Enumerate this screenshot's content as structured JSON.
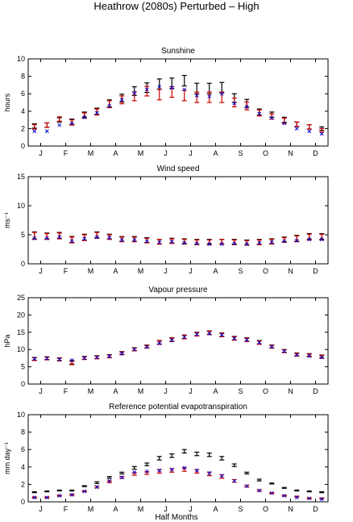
{
  "figure": {
    "title": "Heathrow (2080s) Perturbed – High",
    "xlabel": "Half Months",
    "month_labels": [
      "J",
      "F",
      "M",
      "A",
      "M",
      "J",
      "J",
      "A",
      "S",
      "O",
      "N",
      "D"
    ]
  },
  "chart_data": [
    {
      "type": "scatter",
      "title": "Sunshine",
      "ylabel": "hours",
      "ylim": [
        0,
        10
      ],
      "yticks": [
        0,
        2,
        4,
        6,
        8,
        10
      ],
      "x": [
        1,
        2,
        3,
        4,
        5,
        6,
        7,
        8,
        9,
        10,
        11,
        12,
        13,
        14,
        15,
        16,
        17,
        18,
        19,
        20,
        21,
        22,
        23,
        24
      ],
      "series": [
        {
          "color": "#000000",
          "marker": "errorbar",
          "values": [
            2.3,
            2.4,
            3.0,
            2.8,
            3.6,
            4.0,
            4.9,
            5.5,
            6.3,
            6.7,
            7.1,
            7.2,
            7.5,
            6.6,
            6.6,
            6.7,
            5.5,
            4.9,
            3.9,
            3.6,
            3.0,
            2.5,
            2.2,
            2.0
          ],
          "err": [
            0.25,
            0.25,
            0.25,
            0.3,
            0.3,
            0.35,
            0.4,
            0.45,
            0.5,
            0.55,
            0.6,
            0.6,
            0.6,
            0.6,
            0.6,
            0.6,
            0.5,
            0.45,
            0.35,
            0.3,
            0.3,
            0.25,
            0.25,
            0.2
          ]
        },
        {
          "color": "#cc0000",
          "marker": "errorbar",
          "values": [
            2.2,
            2.4,
            3.1,
            2.7,
            3.5,
            3.9,
            4.8,
            5.3,
            5.7,
            6.3,
            5.9,
            6.2,
            5.8,
            5.6,
            5.6,
            5.6,
            5.0,
            4.6,
            3.8,
            3.4,
            2.9,
            2.5,
            2.2,
            1.8
          ],
          "err": [
            0.25,
            0.25,
            0.25,
            0.3,
            0.3,
            0.35,
            0.4,
            0.45,
            0.5,
            0.55,
            0.6,
            0.6,
            0.6,
            0.6,
            0.6,
            0.6,
            0.5,
            0.45,
            0.35,
            0.3,
            0.3,
            0.25,
            0.25,
            0.2
          ]
        },
        {
          "color": "#0000cc",
          "marker": "x",
          "values": [
            1.7,
            1.7,
            2.4,
            2.6,
            3.3,
            3.8,
            4.6,
            5.3,
            6.1,
            6.5,
            6.8,
            6.7,
            6.5,
            5.8,
            5.7,
            6.0,
            4.9,
            4.5,
            3.7,
            3.2,
            2.6,
            2.0,
            1.7,
            1.4
          ]
        }
      ]
    },
    {
      "type": "scatter",
      "title": "Wind speed",
      "ylabel": "ms⁻¹",
      "ylim": [
        0,
        15
      ],
      "yticks": [
        0,
        5,
        10,
        15
      ],
      "x": [
        1,
        2,
        3,
        4,
        5,
        6,
        7,
        8,
        9,
        10,
        11,
        12,
        13,
        14,
        15,
        16,
        17,
        18,
        19,
        20,
        21,
        22,
        23,
        24
      ],
      "series": [
        {
          "color": "#000000",
          "marker": "errorbar",
          "values": [
            4.9,
            4.8,
            4.9,
            4.2,
            4.6,
            5.0,
            4.7,
            4.3,
            4.3,
            4.1,
            3.8,
            4.0,
            3.9,
            3.8,
            3.8,
            3.8,
            3.8,
            3.7,
            3.8,
            3.9,
            4.2,
            4.4,
            4.7,
            4.7
          ],
          "err": [
            0.6,
            0.5,
            0.5,
            0.5,
            0.5,
            0.5,
            0.4,
            0.4,
            0.4,
            0.4,
            0.4,
            0.4,
            0.4,
            0.4,
            0.4,
            0.4,
            0.4,
            0.4,
            0.4,
            0.4,
            0.4,
            0.5,
            0.5,
            0.5
          ]
        },
        {
          "color": "#cc0000",
          "marker": "errorbar",
          "values": [
            4.8,
            4.7,
            4.8,
            4.1,
            4.5,
            4.9,
            4.6,
            4.2,
            4.2,
            4.0,
            3.8,
            3.9,
            3.8,
            3.7,
            3.7,
            3.8,
            3.7,
            3.6,
            3.7,
            3.8,
            4.1,
            4.3,
            4.6,
            4.6
          ],
          "err": [
            0.6,
            0.5,
            0.5,
            0.5,
            0.5,
            0.5,
            0.4,
            0.4,
            0.4,
            0.4,
            0.4,
            0.4,
            0.4,
            0.4,
            0.4,
            0.4,
            0.4,
            0.4,
            0.4,
            0.4,
            0.4,
            0.5,
            0.5,
            0.5
          ]
        },
        {
          "color": "#0000cc",
          "marker": "x",
          "values": [
            4.4,
            4.4,
            4.6,
            3.9,
            4.3,
            4.6,
            4.5,
            4.1,
            4.1,
            3.9,
            3.7,
            3.8,
            3.6,
            3.5,
            3.4,
            3.4,
            3.5,
            3.4,
            3.6,
            3.7,
            3.9,
            4.0,
            4.2,
            4.2
          ]
        }
      ]
    },
    {
      "type": "scatter",
      "title": "Vapour pressure",
      "ylabel": "hPa",
      "ylim": [
        0,
        25
      ],
      "yticks": [
        0,
        5,
        10,
        15,
        20,
        25
      ],
      "x": [
        1,
        2,
        3,
        4,
        5,
        6,
        7,
        8,
        9,
        10,
        11,
        12,
        13,
        14,
        15,
        16,
        17,
        18,
        19,
        20,
        21,
        22,
        23,
        24
      ],
      "series": [
        {
          "color": "#000000",
          "marker": "errorbar",
          "values": [
            7.3,
            7.5,
            7.2,
            6.3,
            7.6,
            7.8,
            8.1,
            9.0,
            10.1,
            10.9,
            12.1,
            12.9,
            13.7,
            14.5,
            14.9,
            14.3,
            13.3,
            12.9,
            12.1,
            10.9,
            9.6,
            8.6,
            8.4,
            8.0
          ],
          "err": [
            0.4,
            0.4,
            0.4,
            0.5,
            0.4,
            0.4,
            0.4,
            0.4,
            0.4,
            0.4,
            0.5,
            0.5,
            0.5,
            0.5,
            0.5,
            0.5,
            0.5,
            0.5,
            0.5,
            0.4,
            0.4,
            0.4,
            0.4,
            0.4
          ]
        },
        {
          "color": "#cc0000",
          "marker": "errorbar",
          "values": [
            7.2,
            7.4,
            7.1,
            6.1,
            7.5,
            7.7,
            8.0,
            8.9,
            10.0,
            10.8,
            12.0,
            12.8,
            13.6,
            14.4,
            14.8,
            14.2,
            13.2,
            12.8,
            12.0,
            10.8,
            9.5,
            8.5,
            8.3,
            7.9
          ],
          "err": [
            0.4,
            0.4,
            0.4,
            0.5,
            0.4,
            0.4,
            0.4,
            0.4,
            0.4,
            0.4,
            0.5,
            0.5,
            0.5,
            0.5,
            0.5,
            0.5,
            0.5,
            0.5,
            0.5,
            0.4,
            0.4,
            0.4,
            0.4,
            0.4
          ]
        },
        {
          "color": "#0000cc",
          "marker": "x",
          "values": [
            7.3,
            7.4,
            7.1,
            6.9,
            7.5,
            7.7,
            8.0,
            8.8,
            10.0,
            10.7,
            11.8,
            12.7,
            13.6,
            14.4,
            14.6,
            14.2,
            13.2,
            12.8,
            12.0,
            10.8,
            9.5,
            8.4,
            8.1,
            7.7
          ]
        }
      ]
    },
    {
      "type": "scatter",
      "title": "Reference potential evapotranspiration",
      "ylabel": "mm day⁻¹",
      "ylim": [
        0,
        10
      ],
      "yticks": [
        0,
        2,
        4,
        6,
        8,
        10
      ],
      "x": [
        1,
        2,
        3,
        4,
        5,
        6,
        7,
        8,
        9,
        10,
        11,
        12,
        13,
        14,
        15,
        16,
        17,
        18,
        19,
        20,
        21,
        22,
        23,
        24
      ],
      "series": [
        {
          "color": "#000000",
          "marker": "errorbar",
          "values": [
            1.1,
            1.2,
            1.3,
            1.3,
            1.8,
            2.2,
            2.8,
            3.3,
            3.9,
            4.3,
            5.0,
            5.3,
            5.8,
            5.5,
            5.4,
            5.0,
            4.2,
            3.3,
            2.5,
            2.1,
            1.6,
            1.3,
            1.2,
            1.1
          ],
          "err": [
            0.05,
            0.05,
            0.05,
            0.05,
            0.05,
            0.1,
            0.1,
            0.1,
            0.15,
            0.15,
            0.2,
            0.2,
            0.2,
            0.2,
            0.2,
            0.2,
            0.15,
            0.1,
            0.1,
            0.05,
            0.05,
            0.05,
            0.05,
            0.05
          ]
        },
        {
          "color": "#cc0000",
          "marker": "errorbar",
          "values": [
            0.5,
            0.5,
            0.7,
            0.8,
            1.2,
            1.7,
            2.3,
            2.8,
            3.2,
            3.3,
            3.5,
            3.6,
            3.7,
            3.5,
            3.2,
            2.9,
            2.4,
            1.8,
            1.3,
            1.0,
            0.7,
            0.6,
            0.4,
            0.4
          ],
          "err": [
            0.05,
            0.05,
            0.05,
            0.05,
            0.05,
            0.1,
            0.1,
            0.1,
            0.15,
            0.15,
            0.2,
            0.2,
            0.2,
            0.2,
            0.2,
            0.2,
            0.15,
            0.1,
            0.1,
            0.05,
            0.05,
            0.05,
            0.05,
            0.05
          ]
        },
        {
          "color": "#0000cc",
          "marker": "x",
          "values": [
            0.5,
            0.5,
            0.7,
            0.8,
            1.2,
            1.7,
            2.4,
            2.8,
            3.4,
            3.5,
            3.6,
            3.7,
            3.9,
            3.6,
            3.3,
            3.0,
            2.4,
            1.8,
            1.3,
            1.0,
            0.7,
            0.5,
            0.4,
            0.3
          ]
        }
      ]
    }
  ]
}
